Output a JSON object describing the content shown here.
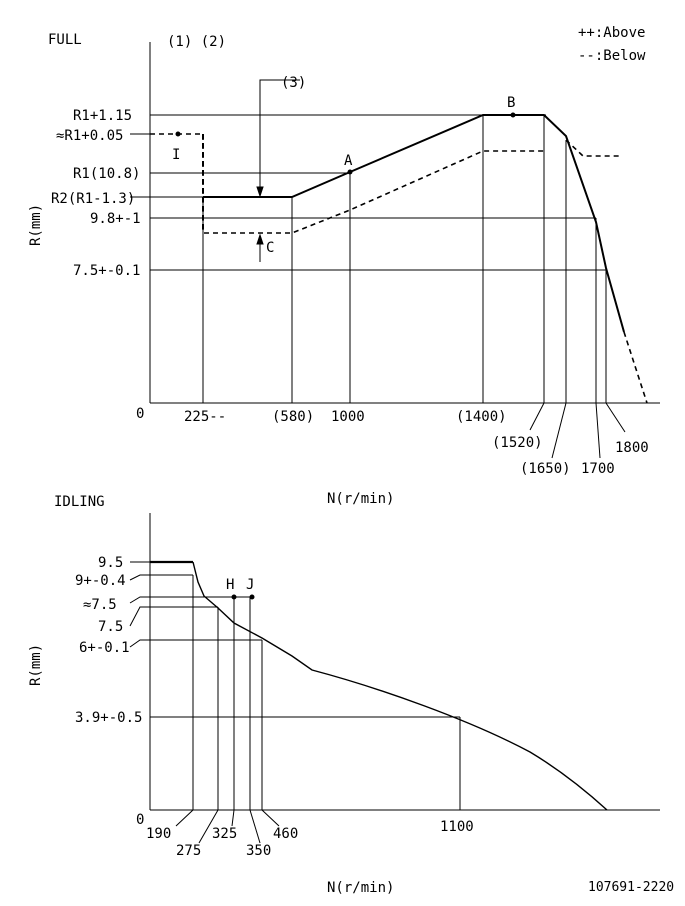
{
  "full": {
    "section_label": "FULL",
    "notes_label": "(1) (2)",
    "annotation_3": "(3)",
    "legend": {
      "above": "++:Above",
      "below": "--:Below"
    },
    "y_axis_label": "R(mm)",
    "x_axis_label": "N(r/min)",
    "origin": "0",
    "y_ticks": [
      "R1+1.15",
      "≈R1+0.05",
      "R1(10.8)",
      "R2(R1-1.3)",
      "9.8+-1",
      "7.5+-0.1"
    ],
    "x_ticks": [
      "225--",
      "(580)",
      "1000",
      "(1400)",
      "(1520)",
      "(1650)",
      "1700",
      "1800"
    ],
    "points": {
      "A": "A",
      "B": "B",
      "C": "C",
      "I": "I"
    }
  },
  "idling": {
    "section_label": "IDLING",
    "y_axis_label": "R(mm)",
    "x_axis_label": "N(r/min)",
    "origin": "0",
    "y_ticks": [
      "9.5",
      "9+-0.4",
      "≈7.5",
      "7.5",
      "6+-0.1",
      "3.9+-0.5"
    ],
    "x_ticks": [
      "190",
      "275",
      "325",
      "350",
      "460",
      "1100"
    ],
    "points": {
      "H": "H",
      "J": "J"
    }
  },
  "footer_code": "107691-2220"
}
